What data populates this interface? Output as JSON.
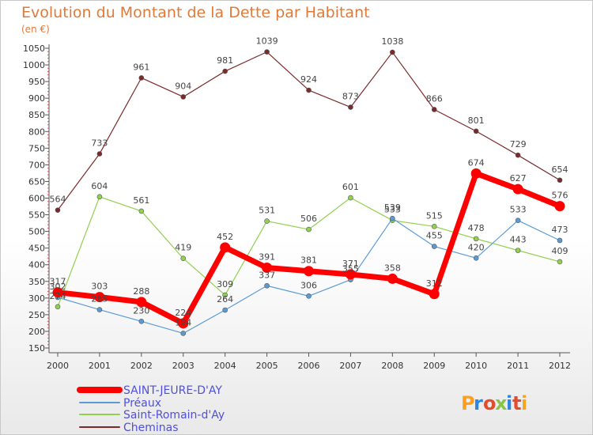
{
  "title": "Evolution du Montant de la Dette par Habitant",
  "unit_label": "(en €)",
  "brand": "Proxiti",
  "chart_data": {
    "type": "line",
    "title": "Evolution du Montant de la Dette par Habitant",
    "ylabel": "(en €)",
    "xlabel": "",
    "x": [
      "2000",
      "2001",
      "2002",
      "2003",
      "2004",
      "2005",
      "2006",
      "2007",
      "2008",
      "2009",
      "2010",
      "2011",
      "2012"
    ],
    "ylim": [
      150,
      1050
    ],
    "yticks": [
      150,
      200,
      250,
      300,
      350,
      400,
      450,
      500,
      550,
      600,
      650,
      700,
      750,
      800,
      850,
      900,
      950,
      1000,
      1050
    ],
    "grid": false,
    "legend_position": "bottom-left",
    "series": [
      {
        "name": "SAINT-JEURE-D'AY",
        "color": "#ff0000",
        "values": [
          317,
          303,
          288,
          224,
          452,
          391,
          381,
          371,
          358,
          312,
          674,
          627,
          576
        ]
      },
      {
        "name": "Préaux",
        "color": "#5b9bd5",
        "values": [
          302,
          265,
          230,
          194,
          264,
          337,
          306,
          355,
          539,
          455,
          420,
          533,
          473
        ]
      },
      {
        "name": "Saint-Romain-d'Ay",
        "color": "#92d050",
        "values": [
          274,
          604,
          561,
          419,
          309,
          531,
          506,
          601,
          533,
          515,
          478,
          443,
          409
        ]
      },
      {
        "name": "Cheminas",
        "color": "#7b2a2a",
        "values": [
          564,
          733,
          961,
          904,
          981,
          1039,
          924,
          873,
          1038,
          866,
          801,
          729,
          654
        ]
      }
    ]
  }
}
